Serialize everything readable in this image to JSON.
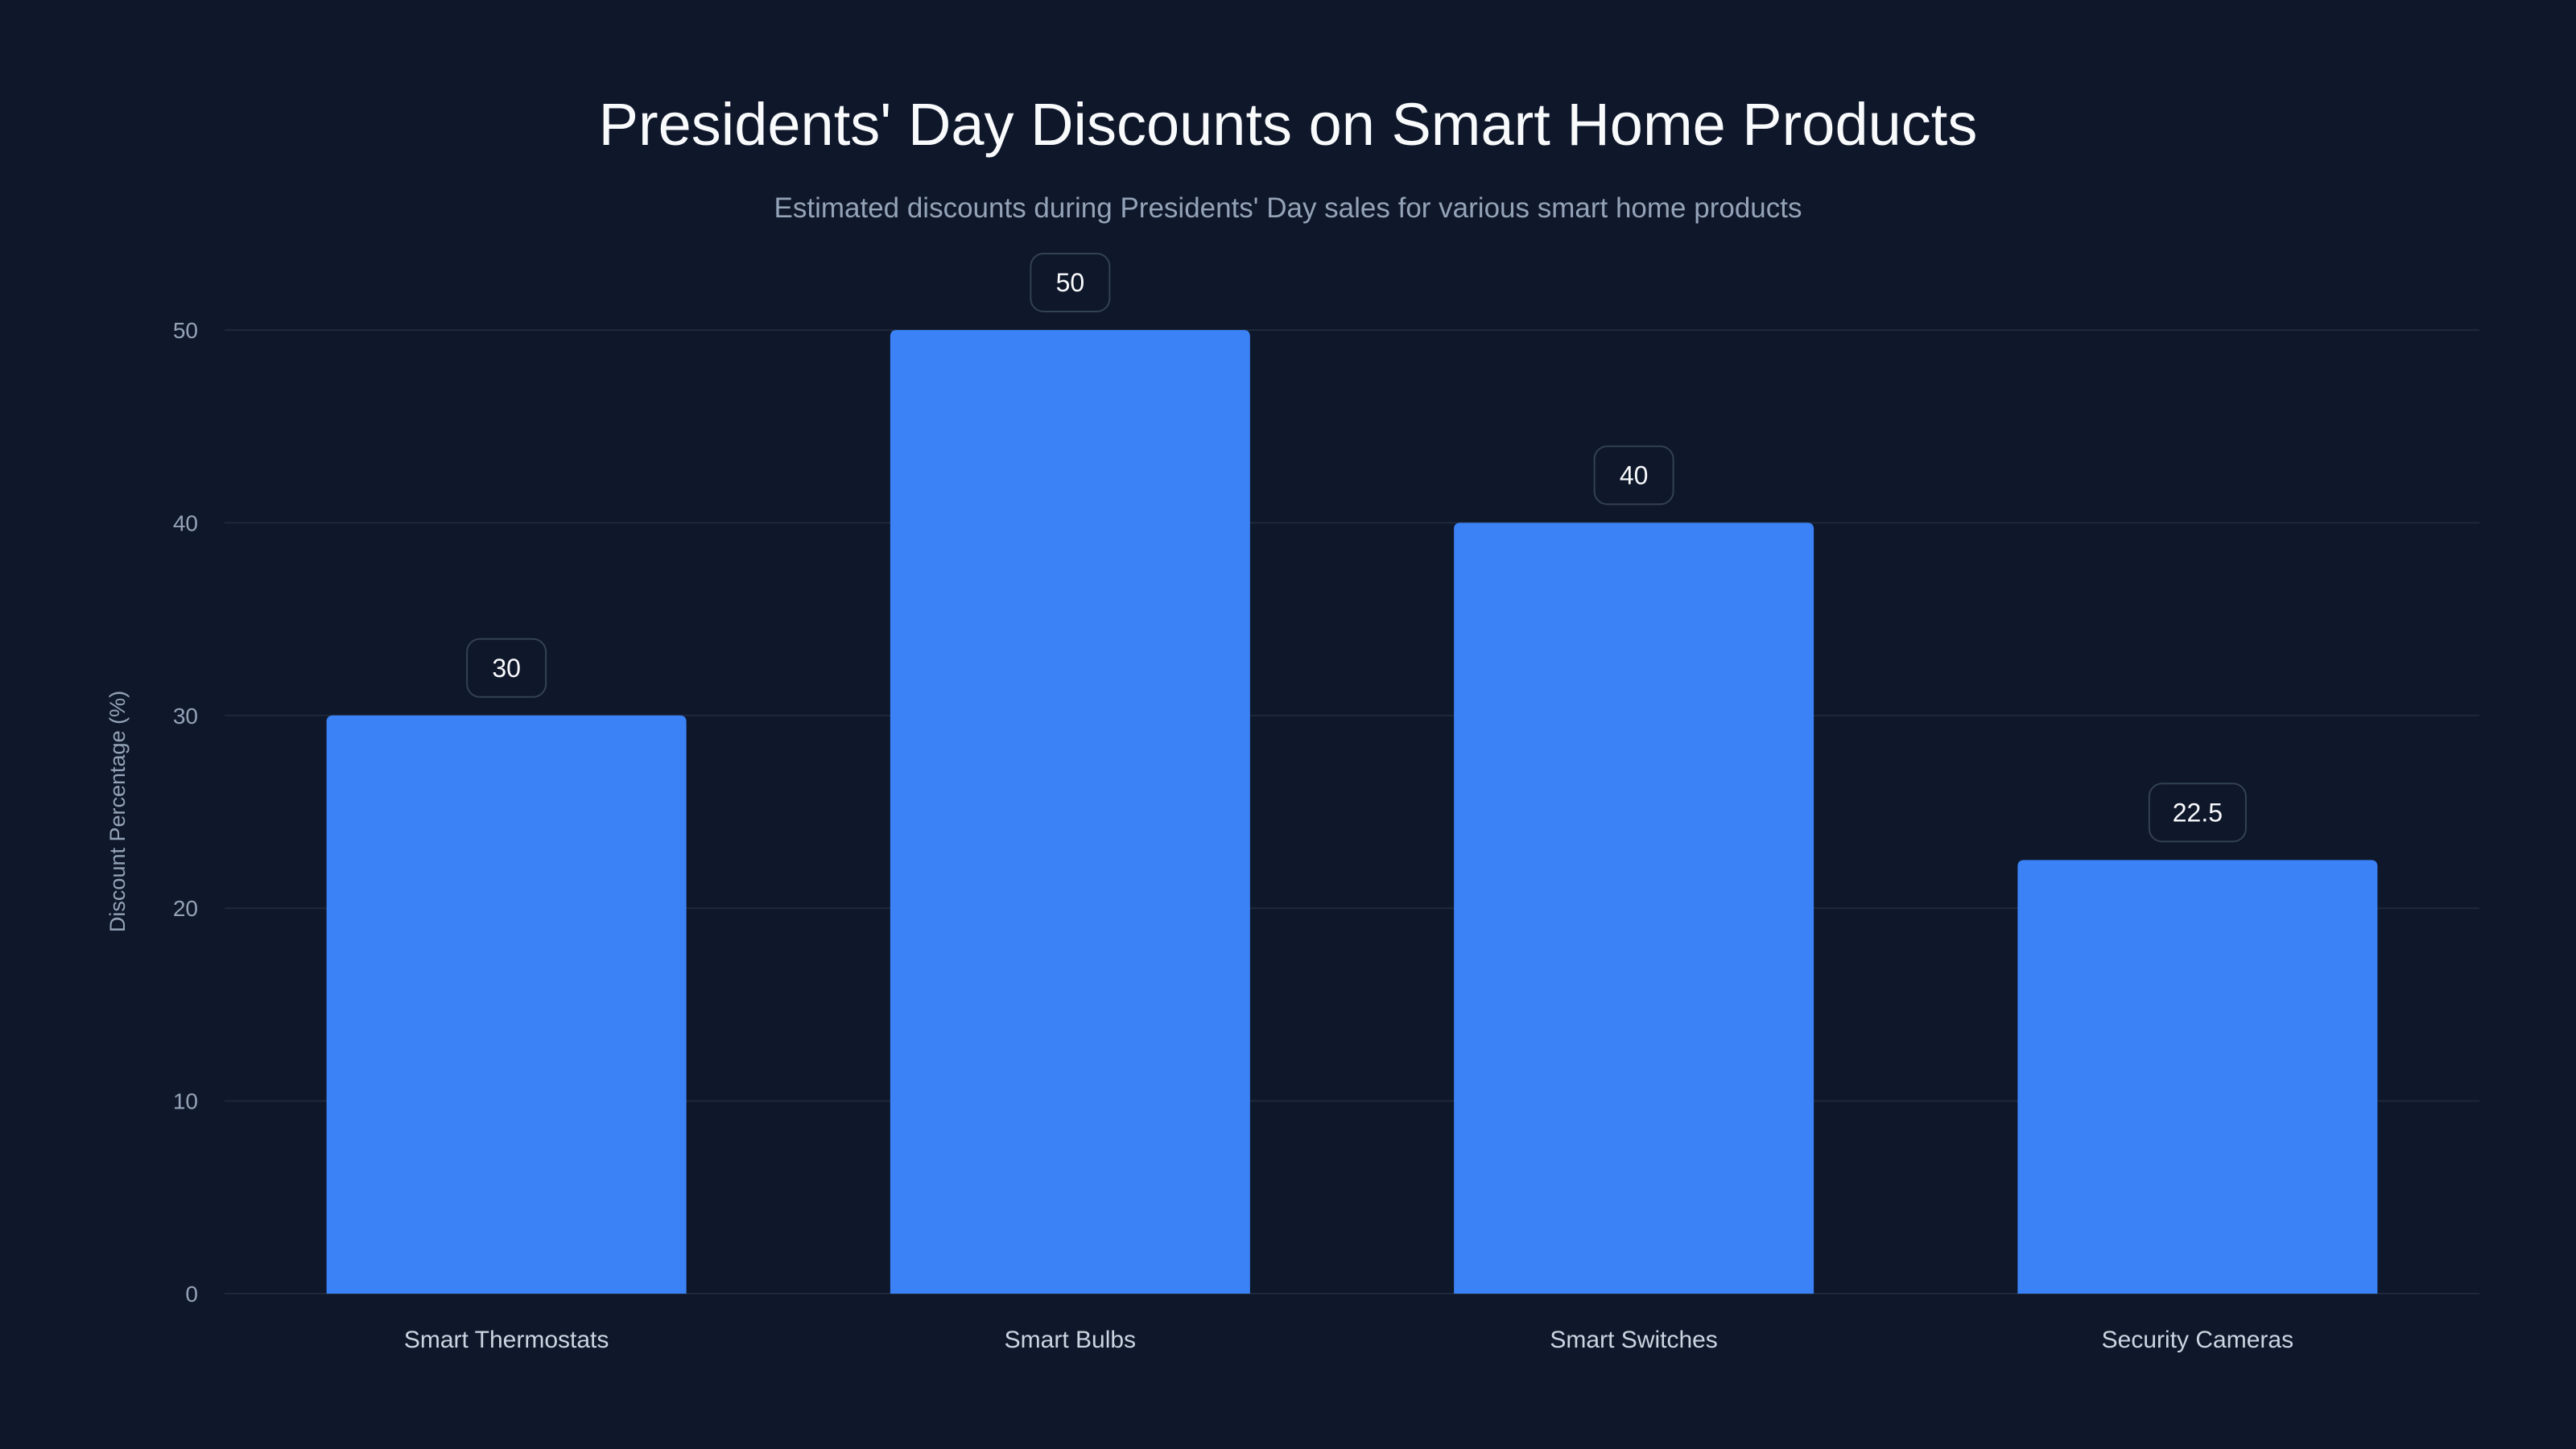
{
  "chart_data": {
    "type": "bar",
    "title": "Presidents' Day Discounts on Smart Home Products",
    "subtitle": "Estimated discounts during Presidents' Day sales for various smart home products",
    "xlabel": "",
    "ylabel": "Discount Percentage (%)",
    "categories": [
      "Smart Thermostats",
      "Smart Bulbs",
      "Smart Switches",
      "Security Cameras"
    ],
    "values": [
      30,
      50,
      40,
      22.5
    ],
    "data_labels": [
      "30",
      "50",
      "40",
      "22.5"
    ],
    "ylim": [
      0,
      50
    ],
    "yticks": [
      0,
      10,
      20,
      30,
      40,
      50
    ],
    "grid": true,
    "legend": "none",
    "colors": {
      "bar": "#3b82f6",
      "background": "#0f172a",
      "grid": "#1e293b"
    }
  }
}
